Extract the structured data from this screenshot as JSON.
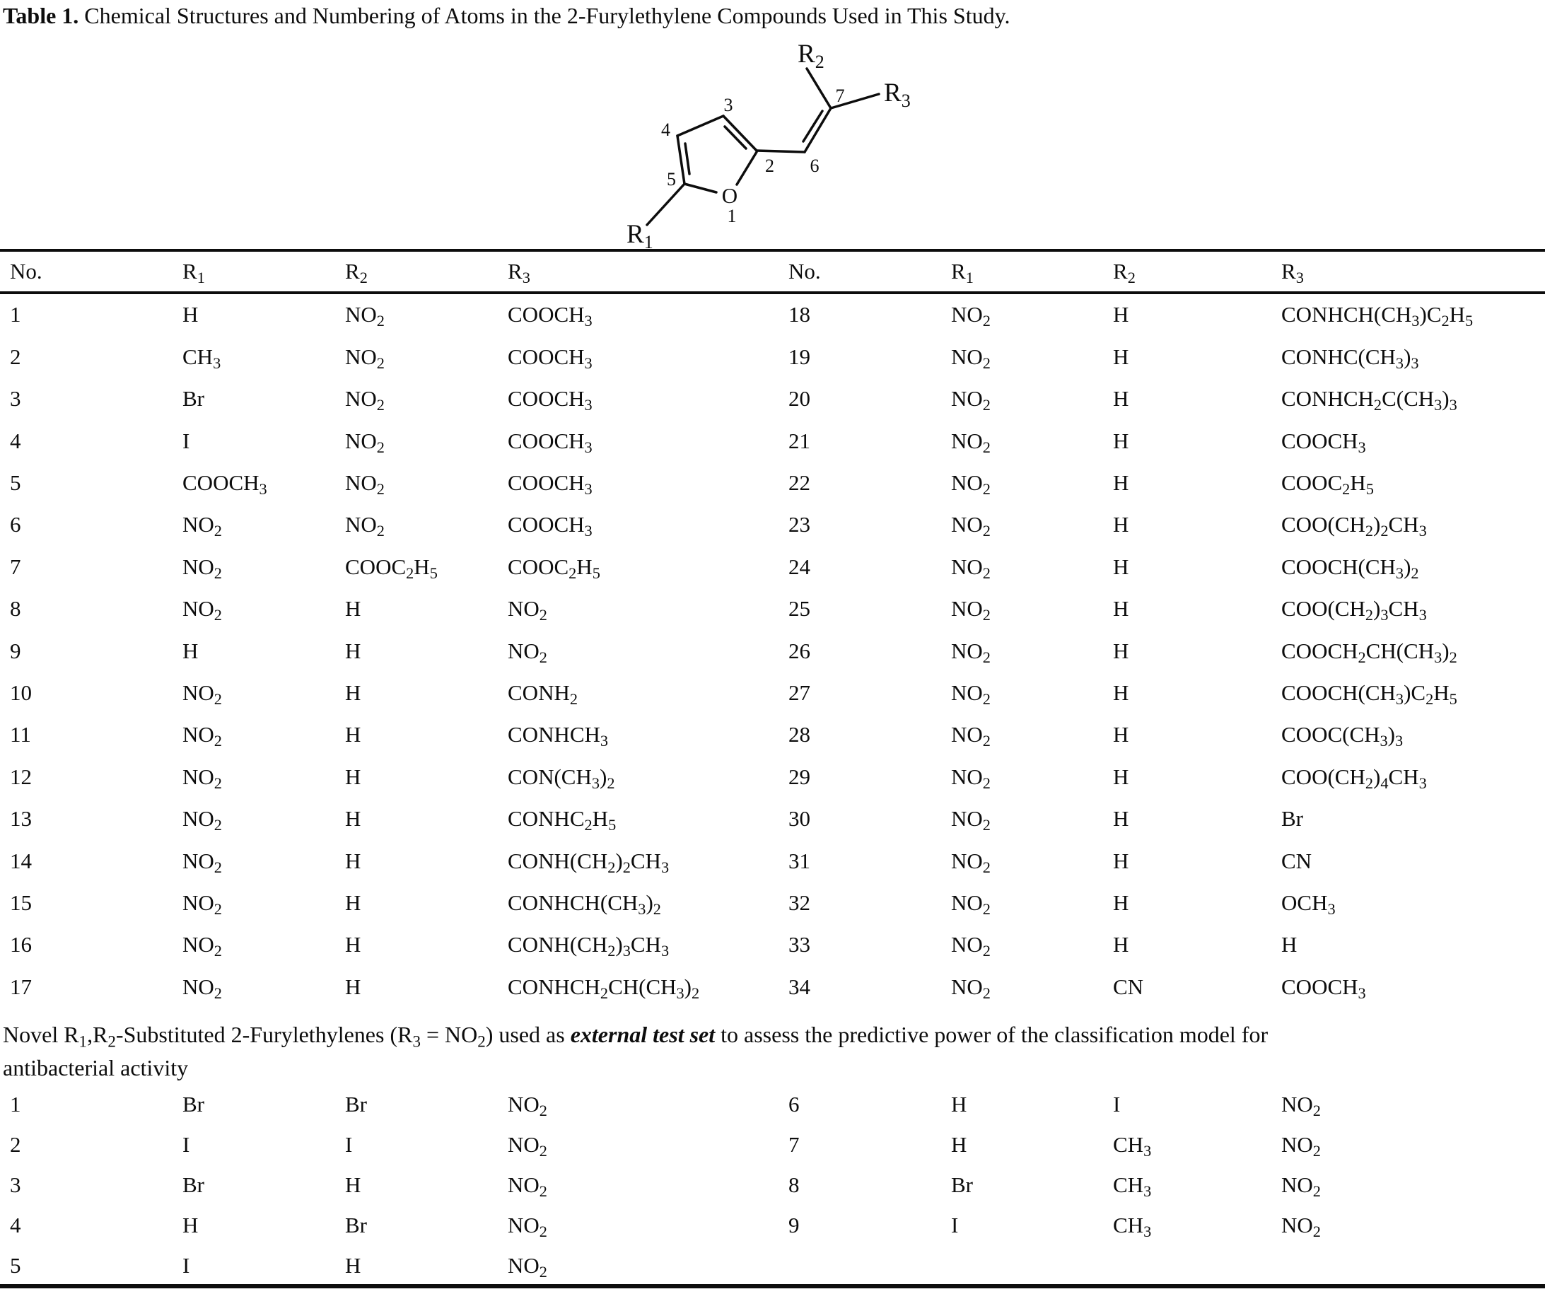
{
  "title": {
    "label": "Table 1.",
    "text": " Chemical Structures and Numbering of Atoms in the 2-Furylethylene Compounds Used in This Study."
  },
  "structure": {
    "oxygen": "O",
    "atom_numbers": [
      "1",
      "2",
      "3",
      "4",
      "5",
      "6",
      "7"
    ],
    "r_labels": [
      {
        "base": "R",
        "sub": "1"
      },
      {
        "base": "R",
        "sub": "2"
      },
      {
        "base": "R",
        "sub": "3"
      }
    ]
  },
  "main_table": {
    "headers": [
      "No.",
      "R~1~",
      "R~2~",
      "R~3~"
    ],
    "left_rows": [
      [
        "1",
        "H",
        "NO~2~",
        "COOCH~3~"
      ],
      [
        "2",
        "CH~3~",
        "NO~2~",
        "COOCH~3~"
      ],
      [
        "3",
        "Br",
        "NO~2~",
        "COOCH~3~"
      ],
      [
        "4",
        "I",
        "NO~2~",
        "COOCH~3~"
      ],
      [
        "5",
        "COOCH~3~",
        "NO~2~",
        "COOCH~3~"
      ],
      [
        "6",
        "NO~2~",
        "NO~2~",
        "COOCH~3~"
      ],
      [
        "7",
        "NO~2~",
        "COOC~2~H~5~",
        "COOC~2~H~5~"
      ],
      [
        "8",
        "NO~2~",
        "H",
        "NO~2~"
      ],
      [
        "9",
        "H",
        "H",
        "NO~2~"
      ],
      [
        "10",
        "NO~2~",
        "H",
        "CONH~2~"
      ],
      [
        "11",
        "NO~2~",
        "H",
        "CONHCH~3~"
      ],
      [
        "12",
        "NO~2~",
        "H",
        "CON(CH~3~)~2~"
      ],
      [
        "13",
        "NO~2~",
        "H",
        "CONHC~2~H~5~"
      ],
      [
        "14",
        "NO~2~",
        "H",
        "CONH(CH~2~)~2~CH~3~"
      ],
      [
        "15",
        "NO~2~",
        "H",
        "CONHCH(CH~3~)~2~"
      ],
      [
        "16",
        "NO~2~",
        "H",
        "CONH(CH~2~)~3~CH~3~"
      ],
      [
        "17",
        "NO~2~",
        "H",
        "CONHCH~2~CH(CH~3~)~2~"
      ]
    ],
    "right_rows": [
      [
        "18",
        "NO~2~",
        "H",
        "CONHCH(CH~3~)C~2~H~5~"
      ],
      [
        "19",
        "NO~2~",
        "H",
        "CONHC(CH~3~)~3~"
      ],
      [
        "20",
        "NO~2~",
        "H",
        "CONHCH~2~C(CH~3~)~3~"
      ],
      [
        "21",
        "NO~2~",
        "H",
        "COOCH~3~"
      ],
      [
        "22",
        "NO~2~",
        "H",
        "COOC~2~H~5~"
      ],
      [
        "23",
        "NO~2~",
        "H",
        "COO(CH~2~)~2~CH~3~"
      ],
      [
        "24",
        "NO~2~",
        "H",
        "COOCH(CH~3~)~2~"
      ],
      [
        "25",
        "NO~2~",
        "H",
        "COO(CH~2~)~3~CH~3~"
      ],
      [
        "26",
        "NO~2~",
        "H",
        "COOCH~2~CH(CH~3~)~2~"
      ],
      [
        "27",
        "NO~2~",
        "H",
        "COOCH(CH~3~)C~2~H~5~"
      ],
      [
        "28",
        "NO~2~",
        "H",
        "COOC(CH~3~)~3~"
      ],
      [
        "29",
        "NO~2~",
        "H",
        "COO(CH~2~)~4~CH~3~"
      ],
      [
        "30",
        "NO~2~",
        "H",
        "Br"
      ],
      [
        "31",
        "NO~2~",
        "H",
        "CN"
      ],
      [
        "32",
        "NO~2~",
        "H",
        "OCH~3~"
      ],
      [
        "33",
        "NO~2~",
        "H",
        "H"
      ],
      [
        "34",
        "NO~2~",
        "CN",
        "COOCH~3~"
      ]
    ]
  },
  "note": {
    "line1": "Novel R~1~,R~2~-Substituted 2-Furylethylenes (R~3~ = NO~2~) used as **external test set** to assess the predictive power of the classification model for",
    "line2": "antibacterial activity"
  },
  "test_table": {
    "left_rows": [
      [
        "1",
        "Br",
        "Br",
        "NO~2~"
      ],
      [
        "2",
        "I",
        "I",
        "NO~2~"
      ],
      [
        "3",
        "Br",
        "H",
        "NO~2~"
      ],
      [
        "4",
        "H",
        "Br",
        "NO~2~"
      ],
      [
        "5",
        "I",
        "H",
        "NO~2~"
      ]
    ],
    "right_rows": [
      [
        "6",
        "H",
        "I",
        "NO~2~"
      ],
      [
        "7",
        "H",
        "CH~3~",
        "NO~2~"
      ],
      [
        "8",
        "Br",
        "CH~3~",
        "NO~2~"
      ],
      [
        "9",
        "I",
        "CH~3~",
        "NO~2~"
      ]
    ]
  }
}
